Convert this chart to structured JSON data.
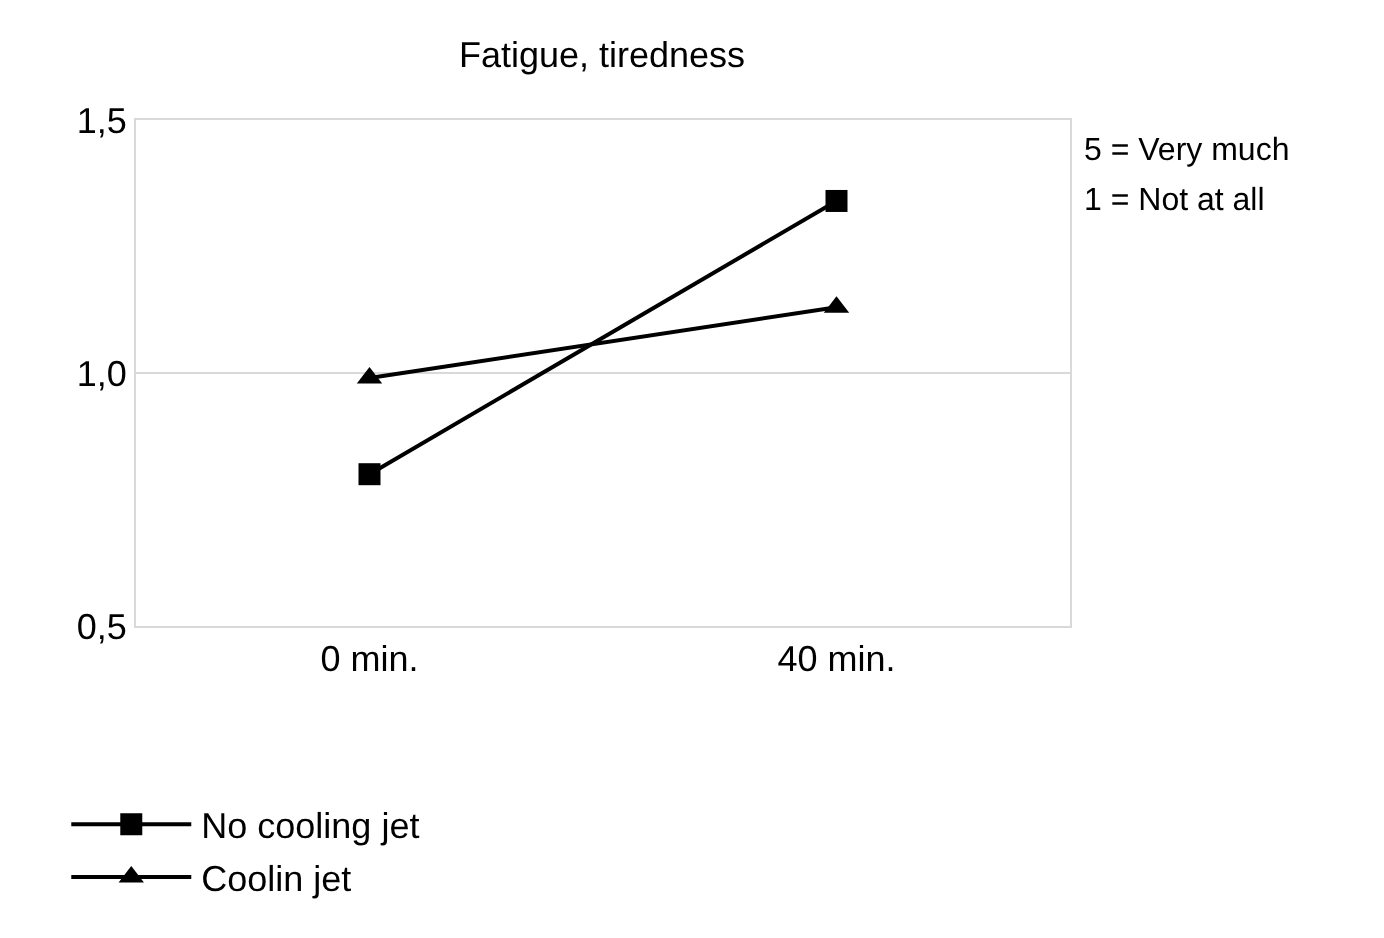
{
  "chart_data": {
    "type": "line",
    "title": "Fatigue, tiredness",
    "categories": [
      "0 min.",
      "40 min."
    ],
    "series": [
      {
        "name": "No cooling jet",
        "color": "#000000",
        "marker": "square",
        "values": [
          0.8,
          1.34
        ]
      },
      {
        "name": "Coolin jet",
        "color": "#000000",
        "marker": "triangle",
        "values": [
          0.99,
          1.13
        ]
      }
    ],
    "ylim": [
      0.5,
      1.5
    ],
    "yticks": [
      {
        "value": 0.5,
        "label": "0,5"
      },
      {
        "value": 1.0,
        "label": "1,0"
      },
      {
        "value": 1.5,
        "label": "1,5"
      }
    ],
    "grid": "y",
    "legend": "bottom",
    "line_style": "solid",
    "annotations": [
      "5 = Very much",
      "1 = Not at all"
    ]
  }
}
